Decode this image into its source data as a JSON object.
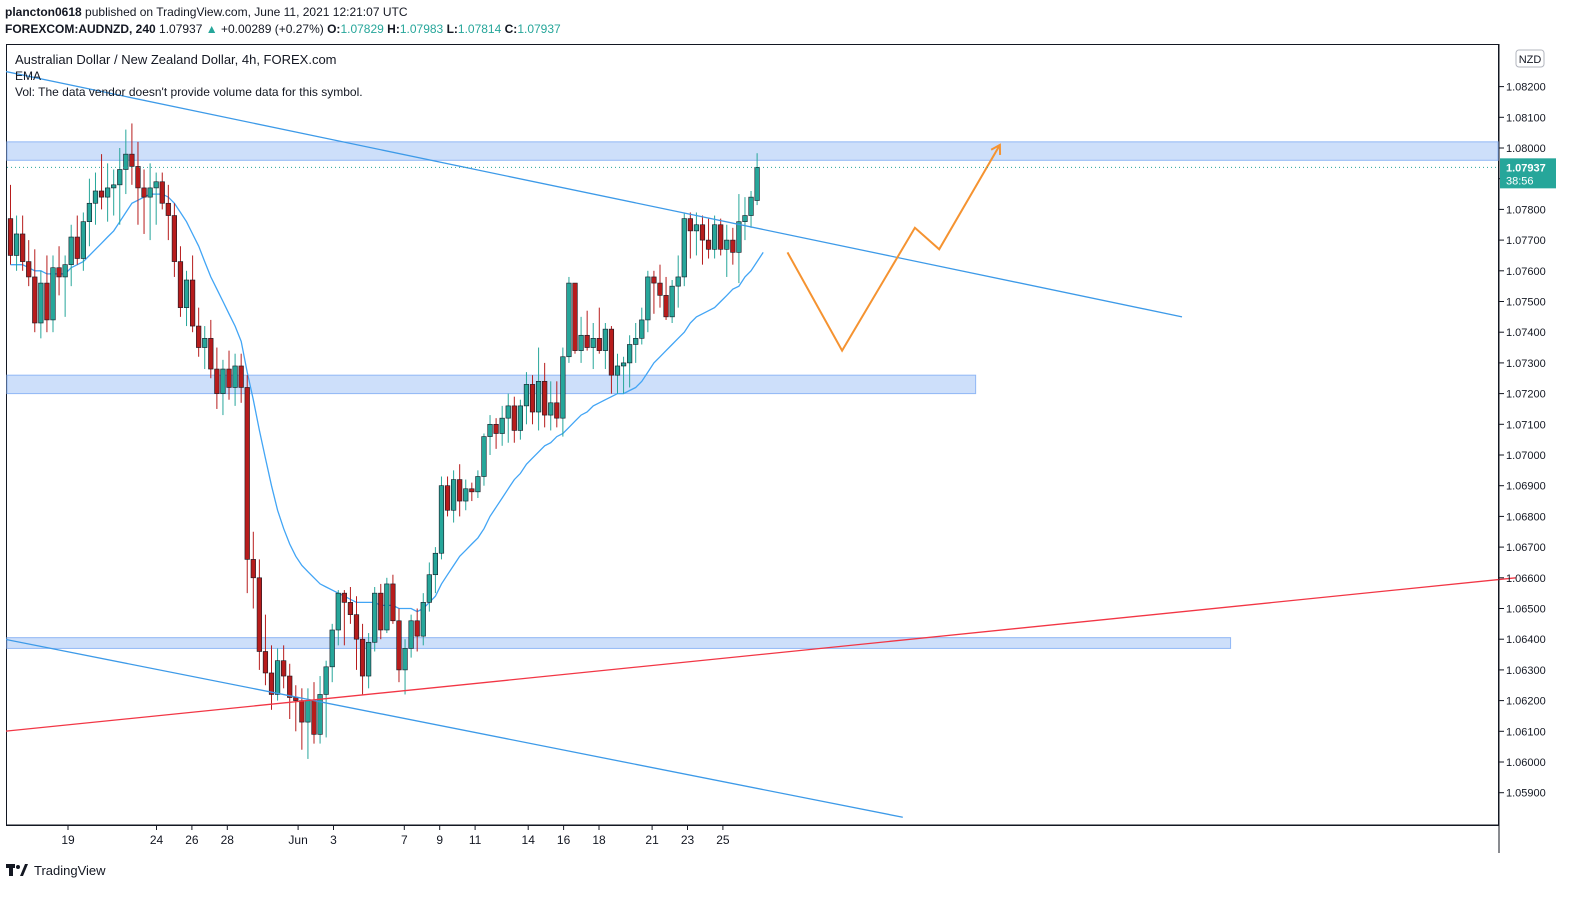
{
  "header": {
    "user": "plancton0618",
    "published": "published on TradingView.com, June 11, 2021 12:21:07 UTC",
    "symbol": "FOREXCOM:AUDNZD, 240",
    "last": "1.07937",
    "change": "+0.00289 (+0.27%)",
    "o_label": "O:",
    "o": "1.07829",
    "h_label": "H:",
    "h": "1.07983",
    "l_label": "L:",
    "l": "1.07814",
    "c_label": "C:",
    "c": "1.07937"
  },
  "legend": {
    "title": "Australian Dollar / New Zealand Dollar, 4h, FOREX.com",
    "ema": "EMA",
    "vol": "Vol: The data vendor doesn't provide volume data for this symbol."
  },
  "price_axis": {
    "currency": "NZD",
    "price_badge": "1.07937",
    "countdown": "38:56"
  },
  "footer": {
    "brand": "TradingView"
  },
  "colors": {
    "up": "#26a69a",
    "down": "#b71c1c",
    "ema": "#42a5f5",
    "zone": "#90b7f5",
    "trendline": "#3d9ae8",
    "support": "#f23645",
    "projection": "#f59331"
  },
  "chart_data": {
    "type": "candlestick",
    "timeframe": "4h",
    "ylim": [
      1.0582,
      1.0831
    ],
    "y_ticks": [
      1.059,
      1.06,
      1.061,
      1.062,
      1.063,
      1.064,
      1.065,
      1.066,
      1.067,
      1.068,
      1.069,
      1.07,
      1.071,
      1.072,
      1.073,
      1.074,
      1.075,
      1.076,
      1.077,
      1.078,
      1.079,
      1.08,
      1.081,
      1.082
    ],
    "x_labels": [
      {
        "label": "19",
        "day": 0
      },
      {
        "label": "24",
        "day": 5
      },
      {
        "label": "26",
        "day": 7
      },
      {
        "label": "28",
        "day": 9
      },
      {
        "label": "Jun",
        "day": 13
      },
      {
        "label": "3",
        "day": 15
      },
      {
        "label": "7",
        "day": 19
      },
      {
        "label": "9",
        "day": 21
      },
      {
        "label": "11",
        "day": 23
      },
      {
        "label": "14",
        "day": 26
      },
      {
        "label": "16",
        "day": 28
      },
      {
        "label": "18",
        "day": 30
      },
      {
        "label": "21",
        "day": 33
      },
      {
        "label": "23",
        "day": 35
      },
      {
        "label": "25",
        "day": 37
      }
    ],
    "candles_note": "OHLC per 4h bar, read off the price axis",
    "candles": [
      [
        1.0777,
        1.0788,
        1.0762,
        1.0765
      ],
      [
        1.0765,
        1.0778,
        1.076,
        1.0772
      ],
      [
        1.0772,
        1.0778,
        1.076,
        1.0763
      ],
      [
        1.0763,
        1.077,
        1.0755,
        1.0758
      ],
      [
        1.0758,
        1.0767,
        1.074,
        1.0743
      ],
      [
        1.0743,
        1.076,
        1.0738,
        1.0756
      ],
      [
        1.0756,
        1.0765,
        1.074,
        1.0744
      ],
      [
        1.0744,
        1.0765,
        1.074,
        1.0761
      ],
      [
        1.0761,
        1.0768,
        1.0752,
        1.0758
      ],
      [
        1.0758,
        1.0765,
        1.0745,
        1.0762
      ],
      [
        1.0762,
        1.0775,
        1.0755,
        1.0771
      ],
      [
        1.0771,
        1.0778,
        1.0762,
        1.0764
      ],
      [
        1.0764,
        1.0779,
        1.076,
        1.0776
      ],
      [
        1.0776,
        1.079,
        1.0768,
        1.0782
      ],
      [
        1.0782,
        1.0792,
        1.0775,
        1.0786
      ],
      [
        1.0786,
        1.0798,
        1.078,
        1.0784
      ],
      [
        1.0784,
        1.0795,
        1.0776,
        1.0787
      ],
      [
        1.0787,
        1.0793,
        1.0778,
        1.0788
      ],
      [
        1.0788,
        1.08,
        1.0775,
        1.0793
      ],
      [
        1.0793,
        1.0806,
        1.0785,
        1.0798
      ],
      [
        1.0798,
        1.0808,
        1.0788,
        1.0794
      ],
      [
        1.0794,
        1.0802,
        1.0775,
        1.0787
      ],
      [
        1.0787,
        1.0793,
        1.0772,
        1.0784
      ],
      [
        1.0784,
        1.0795,
        1.077,
        1.0787
      ],
      [
        1.0787,
        1.0792,
        1.0775,
        1.0789
      ],
      [
        1.0789,
        1.0792,
        1.078,
        1.0782
      ],
      [
        1.0782,
        1.0788,
        1.077,
        1.0778
      ],
      [
        1.0778,
        1.0782,
        1.0758,
        1.0763
      ],
      [
        1.0763,
        1.0768,
        1.0745,
        1.0748
      ],
      [
        1.0748,
        1.076,
        1.0742,
        1.0757
      ],
      [
        1.0757,
        1.0765,
        1.074,
        1.0742
      ],
      [
        1.0742,
        1.0748,
        1.0732,
        1.0735
      ],
      [
        1.0735,
        1.0742,
        1.0728,
        1.0738
      ],
      [
        1.0738,
        1.0744,
        1.0725,
        1.0728
      ],
      [
        1.0728,
        1.0735,
        1.0715,
        1.072
      ],
      [
        1.072,
        1.0731,
        1.0713,
        1.0728
      ],
      [
        1.0728,
        1.0734,
        1.0718,
        1.0722
      ],
      [
        1.0722,
        1.0733,
        1.0716,
        1.0729
      ],
      [
        1.0729,
        1.0733,
        1.0717,
        1.0722
      ],
      [
        1.0722,
        1.0726,
        1.0655,
        1.0666
      ],
      [
        1.0666,
        1.0675,
        1.065,
        1.066
      ],
      [
        1.066,
        1.0666,
        1.063,
        1.0636
      ],
      [
        1.0636,
        1.0648,
        1.0625,
        1.0629
      ],
      [
        1.0629,
        1.0638,
        1.0617,
        1.0622
      ],
      [
        1.0622,
        1.0637,
        1.062,
        1.0633
      ],
      [
        1.0633,
        1.0638,
        1.0624,
        1.0628
      ],
      [
        1.0628,
        1.0632,
        1.0614,
        1.0621
      ],
      [
        1.0621,
        1.0625,
        1.061,
        1.062
      ],
      [
        1.062,
        1.0624,
        1.0604,
        1.0613
      ],
      [
        1.0613,
        1.0624,
        1.0601,
        1.062
      ],
      [
        1.062,
        1.0626,
        1.0606,
        1.0609
      ],
      [
        1.0609,
        1.0628,
        1.0606,
        1.0622
      ],
      [
        1.0622,
        1.0633,
        1.0608,
        1.0631
      ],
      [
        1.0631,
        1.0645,
        1.0626,
        1.0643
      ],
      [
        1.0643,
        1.0656,
        1.0638,
        1.0655
      ],
      [
        1.0655,
        1.0656,
        1.0638,
        1.0652
      ],
      [
        1.0652,
        1.0657,
        1.0645,
        1.0648
      ],
      [
        1.0648,
        1.0654,
        1.063,
        1.064
      ],
      [
        1.064,
        1.0645,
        1.0622,
        1.0628
      ],
      [
        1.0628,
        1.0642,
        1.0624,
        1.0639
      ],
      [
        1.0639,
        1.0657,
        1.0636,
        1.0655
      ],
      [
        1.0655,
        1.0658,
        1.064,
        1.0643
      ],
      [
        1.0643,
        1.066,
        1.0642,
        1.0658
      ],
      [
        1.0658,
        1.0661,
        1.0645,
        1.0646
      ],
      [
        1.0646,
        1.065,
        1.0626,
        1.063
      ],
      [
        1.063,
        1.064,
        1.0622,
        1.0637
      ],
      [
        1.0637,
        1.0648,
        1.0634,
        1.0646
      ],
      [
        1.0646,
        1.065,
        1.0636,
        1.0641
      ],
      [
        1.0641,
        1.0655,
        1.0638,
        1.0652
      ],
      [
        1.0652,
        1.0665,
        1.0649,
        1.0661
      ],
      [
        1.0661,
        1.067,
        1.0655,
        1.0668
      ],
      [
        1.0668,
        1.0693,
        1.0666,
        1.069
      ],
      [
        1.069,
        1.0693,
        1.068,
        1.0682
      ],
      [
        1.0682,
        1.0695,
        1.0678,
        1.0692
      ],
      [
        1.0692,
        1.0697,
        1.068,
        1.0685
      ],
      [
        1.0685,
        1.0692,
        1.0682,
        1.0689
      ],
      [
        1.0689,
        1.0691,
        1.0685,
        1.0688
      ],
      [
        1.0688,
        1.0695,
        1.0686,
        1.0693
      ],
      [
        1.0693,
        1.0707,
        1.069,
        1.0706
      ],
      [
        1.0706,
        1.0713,
        1.07,
        1.071
      ],
      [
        1.071,
        1.0712,
        1.0702,
        1.0707
      ],
      [
        1.0707,
        1.0716,
        1.0703,
        1.0712
      ],
      [
        1.0712,
        1.072,
        1.0704,
        1.0716
      ],
      [
        1.0716,
        1.0719,
        1.0704,
        1.0708
      ],
      [
        1.0708,
        1.0718,
        1.0705,
        1.0716
      ],
      [
        1.0716,
        1.0727,
        1.071,
        1.0723
      ],
      [
        1.0723,
        1.0726,
        1.071,
        1.0714
      ],
      [
        1.0714,
        1.0735,
        1.0708,
        1.0724
      ],
      [
        1.0724,
        1.073,
        1.0709,
        1.0713
      ],
      [
        1.0713,
        1.0724,
        1.0708,
        1.0717
      ],
      [
        1.0717,
        1.0724,
        1.0709,
        1.0712
      ],
      [
        1.0712,
        1.0735,
        1.0706,
        1.0732
      ],
      [
        1.0732,
        1.0758,
        1.073,
        1.0756
      ],
      [
        1.0756,
        1.0756,
        1.0733,
        1.0734
      ],
      [
        1.0734,
        1.0745,
        1.073,
        1.0739
      ],
      [
        1.0739,
        1.0747,
        1.0734,
        1.0735
      ],
      [
        1.0735,
        1.0743,
        1.0728,
        1.0738
      ],
      [
        1.0738,
        1.0748,
        1.0733,
        1.0734
      ],
      [
        1.0734,
        1.0743,
        1.0728,
        1.0741
      ],
      [
        1.0741,
        1.0742,
        1.072,
        1.0726
      ],
      [
        1.0726,
        1.0733,
        1.072,
        1.0729
      ],
      [
        1.0729,
        1.0732,
        1.072,
        1.073
      ],
      [
        1.073,
        1.0739,
        1.0722,
        1.0736
      ],
      [
        1.0736,
        1.0743,
        1.073,
        1.0738
      ],
      [
        1.0738,
        1.0748,
        1.0736,
        1.0744
      ],
      [
        1.0744,
        1.076,
        1.074,
        1.0758
      ],
      [
        1.0758,
        1.076,
        1.0746,
        1.0756
      ],
      [
        1.0756,
        1.0762,
        1.0748,
        1.0752
      ],
      [
        1.0752,
        1.0758,
        1.0744,
        1.0745
      ],
      [
        1.0745,
        1.0757,
        1.0743,
        1.0755
      ],
      [
        1.0755,
        1.0765,
        1.0748,
        1.0758
      ],
      [
        1.0758,
        1.0779,
        1.0755,
        1.0777
      ],
      [
        1.0777,
        1.0779,
        1.0764,
        1.0773
      ],
      [
        1.0773,
        1.0779,
        1.0765,
        1.0775
      ],
      [
        1.0775,
        1.0778,
        1.0762,
        1.077
      ],
      [
        1.077,
        1.0777,
        1.0764,
        1.0767
      ],
      [
        1.0767,
        1.0778,
        1.0764,
        1.0775
      ],
      [
        1.0775,
        1.0777,
        1.0765,
        1.0767
      ],
      [
        1.0767,
        1.0775,
        1.0758,
        1.077
      ],
      [
        1.077,
        1.0774,
        1.0762,
        1.0766
      ],
      [
        1.0766,
        1.0785,
        1.0756,
        1.0776
      ],
      [
        1.0776,
        1.0784,
        1.077,
        1.0778
      ],
      [
        1.0778,
        1.0786,
        1.0774,
        1.0784
      ],
      [
        1.07829,
        1.07983,
        1.07814,
        1.07937
      ]
    ],
    "ema_note": "EMA line values per bar",
    "ema": [
      1.0762,
      1.0762,
      1.0762,
      1.0761,
      1.076,
      1.076,
      1.0759,
      1.0759,
      1.0759,
      1.0759,
      1.0761,
      1.0762,
      1.0763,
      1.0765,
      1.0767,
      1.0769,
      1.0771,
      1.0773,
      1.0776,
      1.0779,
      1.0782,
      1.0783,
      1.0784,
      1.0785,
      1.0785,
      1.0785,
      1.0784,
      1.0782,
      1.0779,
      1.0776,
      1.0772,
      1.0768,
      1.0763,
      1.0758,
      1.0754,
      1.075,
      1.0746,
      1.0742,
      1.0737,
      1.0727,
      1.0718,
      1.0708,
      1.0699,
      1.069,
      1.0682,
      1.0676,
      1.0671,
      1.0667,
      1.0664,
      1.0662,
      1.066,
      1.0658,
      1.0657,
      1.0656,
      1.0655,
      1.0654,
      1.0653,
      1.0652,
      1.0652,
      1.0652,
      1.0652,
      1.0651,
      1.0651,
      1.0651,
      1.065,
      1.065,
      1.065,
      1.0649,
      1.065,
      1.0652,
      1.0654,
      1.0658,
      1.0661,
      1.0664,
      1.0667,
      1.0669,
      1.0671,
      1.0673,
      1.0676,
      1.068,
      1.0683,
      1.0686,
      1.0689,
      1.0692,
      1.0694,
      1.0697,
      1.0699,
      1.0701,
      1.0703,
      1.0704,
      1.0706,
      1.0707,
      1.0709,
      1.0711,
      1.0713,
      1.0714,
      1.0716,
      1.0717,
      1.0718,
      1.0719,
      1.072,
      1.072,
      1.0721,
      1.0722,
      1.0724,
      1.0727,
      1.073,
      1.0732,
      1.0734,
      1.0736,
      1.0738,
      1.074,
      1.0743,
      1.0745,
      1.0746,
      1.0747,
      1.0748,
      1.075,
      1.0752,
      1.0754,
      1.0755,
      1.0758,
      1.076,
      1.0763,
      1.0766
    ],
    "zones": [
      {
        "low": 1.0796,
        "high": 1.0802,
        "end_bar": "right-edge"
      },
      {
        "low": 1.072,
        "high": 1.0726,
        "end_bar": 159
      },
      {
        "low": 1.0637,
        "high": 1.06405,
        "end_bar": 201
      }
    ],
    "trendlines": [
      {
        "name": "upper-downtrend",
        "from": [
          -1,
          1.0825
        ],
        "to": [
          193,
          1.0745
        ],
        "color": "#3d9ae8"
      },
      {
        "name": "lower-downtrend",
        "from": [
          -1,
          1.064
        ],
        "to": [
          147,
          1.0582
        ],
        "color": "#3d9ae8"
      },
      {
        "name": "support-rising",
        "from": [
          -1,
          1.061
        ],
        "to": [
          248,
          1.066
        ],
        "color": "#f23645"
      }
    ],
    "projection": {
      "color": "#f59331",
      "points": [
        [
          128,
          1.0766
        ],
        [
          137,
          1.0734
        ],
        [
          149,
          1.0774
        ],
        [
          153,
          1.0767
        ],
        [
          163,
          1.0801
        ]
      ]
    }
  }
}
